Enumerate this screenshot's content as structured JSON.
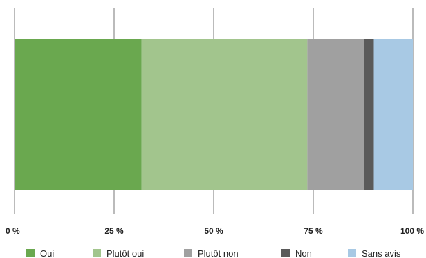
{
  "chart_data": {
    "type": "bar",
    "orientation": "horizontal",
    "stacked": true,
    "percent_scale": true,
    "categories": [
      ""
    ],
    "series": [
      {
        "name": "Oui",
        "values": [
          31.9
        ],
        "color": "#6aa84f"
      },
      {
        "name": "Plutôt oui",
        "values": [
          41.6
        ],
        "color": "#a2c58d"
      },
      {
        "name": "Plutôt non",
        "values": [
          14.3
        ],
        "color": "#a0a0a0"
      },
      {
        "name": "Non",
        "values": [
          2.4
        ],
        "color": "#5a5a5a"
      },
      {
        "name": "Sans avis",
        "values": [
          9.8
        ],
        "color": "#a8c9e4"
      }
    ],
    "xlim": [
      0,
      100
    ],
    "x_ticks": [
      0,
      25,
      50,
      75,
      100
    ],
    "x_tick_labels": [
      "0 %",
      "25 %",
      "50 %",
      "75 %",
      "100 %"
    ],
    "grid": true,
    "legend_position": "bottom"
  }
}
